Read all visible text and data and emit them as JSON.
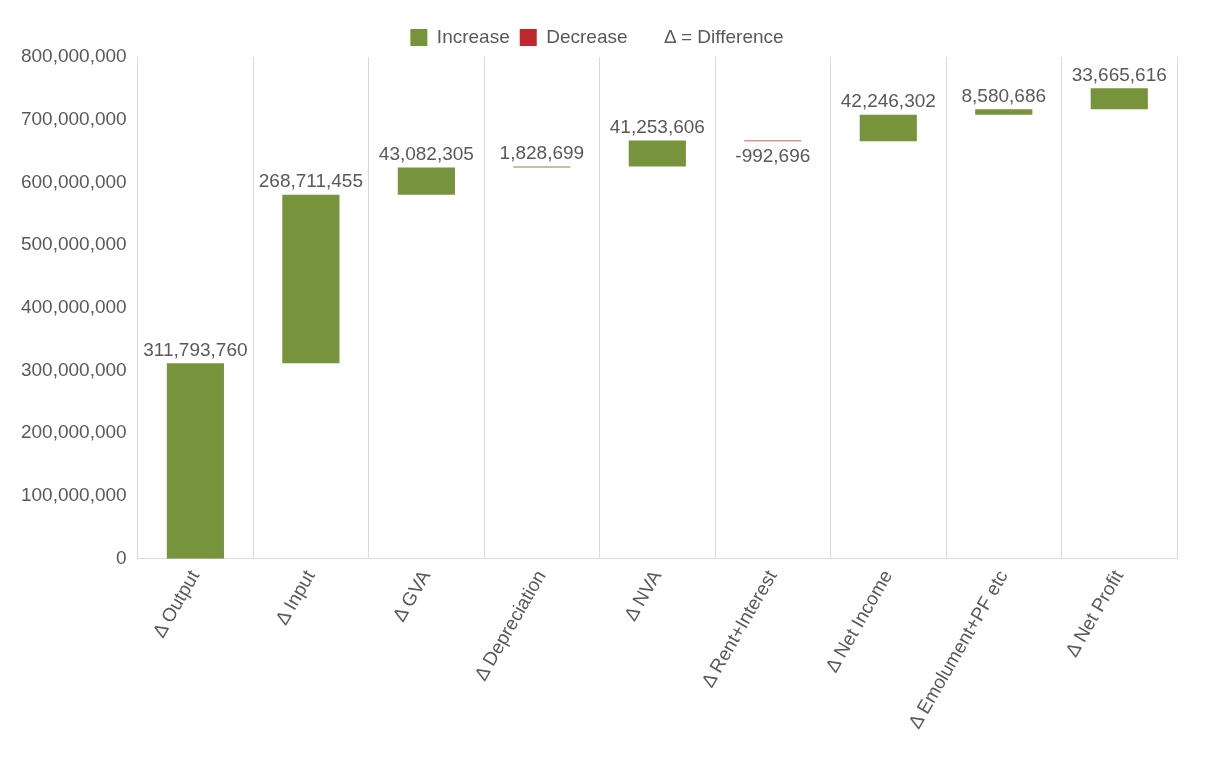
{
  "chart_data": {
    "type": "bar",
    "categories": [
      "Δ Output",
      "Δ Input",
      "Δ GVA",
      "Δ Depreciation",
      "Δ NVA",
      "Δ Rent+Interest",
      "Δ Net Income",
      "Δ Emolument+PF etc",
      "Δ Net Profit"
    ],
    "series": [
      {
        "name": "Increase",
        "color": "#77933c",
        "base": [
          0,
          311793760,
          580505215,
          623587520,
          625416219,
          null,
          665677129,
          707923431,
          716504117
        ],
        "values": [
          311793760,
          268711455,
          43082305,
          1828699,
          41253606,
          null,
          42246302,
          8580686,
          33665616
        ],
        "value_labels": [
          "311,793,760",
          "268,711,455",
          "43,082,305",
          "1,828,699",
          "41,253,606",
          null,
          "42,246,302",
          "8,580,686",
          "33,665,616"
        ]
      },
      {
        "name": "Decrease",
        "color": "#c0262d",
        "base": [
          null,
          null,
          null,
          null,
          null,
          666669825,
          null,
          null,
          null
        ],
        "values": [
          null,
          null,
          null,
          null,
          null,
          -992696,
          null,
          null,
          null
        ],
        "value_labels": [
          null,
          null,
          null,
          null,
          null,
          "-992,696",
          null,
          null,
          null
        ]
      }
    ],
    "ylim": [
      0,
      800000000
    ],
    "yticks": [
      {
        "value": 0,
        "label": "0"
      },
      {
        "value": 100000000,
        "label": "100,000,000"
      },
      {
        "value": 200000000,
        "label": "200,000,000"
      },
      {
        "value": 300000000,
        "label": "300,000,000"
      },
      {
        "value": 400000000,
        "label": "400,000,000"
      },
      {
        "value": 500000000,
        "label": "500,000,000"
      },
      {
        "value": 600000000,
        "label": "600,000,000"
      },
      {
        "value": 700000000,
        "label": "700,000,000"
      },
      {
        "value": 800000000,
        "label": "800,000,000"
      }
    ],
    "annotations": [
      "Δ = Difference"
    ],
    "grid": "x",
    "legend": "top"
  }
}
